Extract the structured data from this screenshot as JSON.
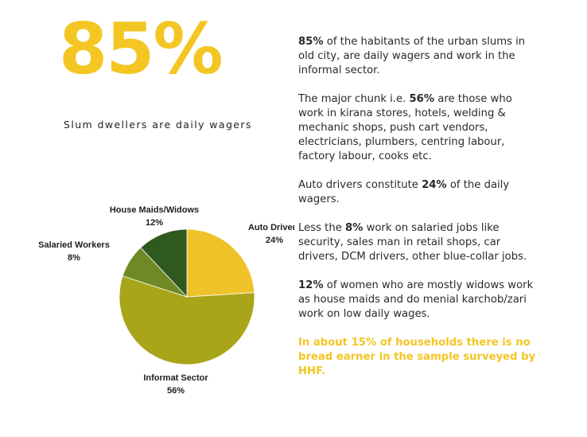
{
  "headline": {
    "stat": "85%",
    "caption": "Slum dwellers are daily wagers"
  },
  "paragraphs": [
    {
      "bold": "85%",
      "text": " of the habitants of the urban slums in old city, are daily wagers and work in the informal sector."
    },
    {
      "pre": "The major chunk i.e. ",
      "bold": "56%",
      "text": " are those who work in kirana stores, hotels, welding & mechanic shops, push cart vendors, electricians, plumbers, centring labour, factory labour, cooks etc."
    },
    {
      "pre": "Auto drivers constitute ",
      "bold": "24%",
      "text": " of the daily wagers."
    },
    {
      "pre": "Less the ",
      "bold": "8%",
      "text": " work on salaried jobs like security, sales man in retail shops, car drivers, DCM drivers, other blue-collar jobs."
    },
    {
      "bold": "12%",
      "text": " of women who are mostly widows work as house maids and do menial karchob/zari work on low daily wages."
    }
  ],
  "highlight_note": "In about 15% of households there is no bread earner in the sample surveyed by HHF.",
  "colors": {
    "accent": "#f3c623",
    "auto_drivers": "#f0c22a",
    "informal_sector": "#a9a51a",
    "salaried_workers": "#6f8a25",
    "house_maids": "#2f5a1f"
  },
  "chart_data": {
    "type": "pie",
    "title": "",
    "slices": [
      {
        "label": "Auto Drivers",
        "value": 24,
        "display": "24%",
        "color": "#f0c22a"
      },
      {
        "label": "Informat Sector",
        "value": 56,
        "display": "56%",
        "color": "#a9a51a"
      },
      {
        "label": "Salaried Workers",
        "value": 8,
        "display": "8%",
        "color": "#6f8a25"
      },
      {
        "label": "House Maids/Widows",
        "value": 12,
        "display": "12%",
        "color": "#2f5a1f"
      }
    ]
  }
}
